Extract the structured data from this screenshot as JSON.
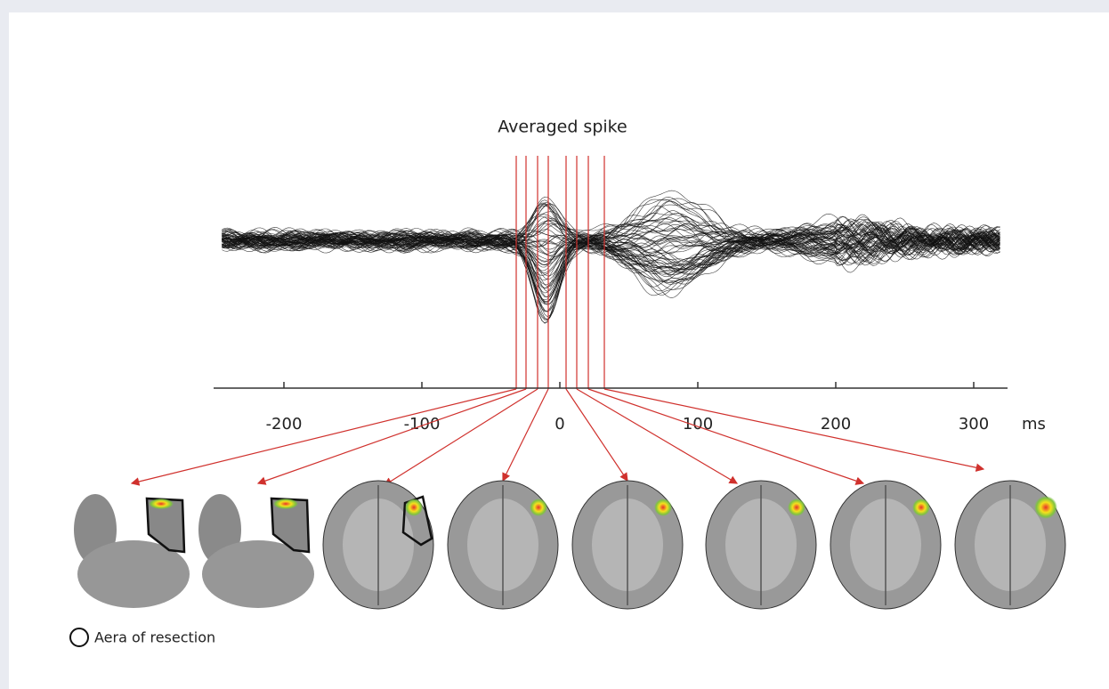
{
  "figure": {
    "title": "Averaged spike",
    "axis": {
      "ticks": [
        -200,
        -100,
        0,
        100,
        200,
        300
      ],
      "unit": "ms"
    },
    "legend": "Aera of resection"
  }
}
